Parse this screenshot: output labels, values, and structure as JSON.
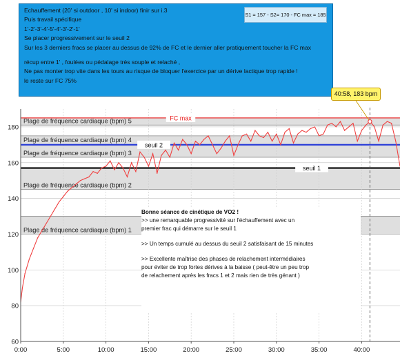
{
  "notes": {
    "lines": [
      "Echauffement (20' si outdoor , 10' si indoor)   finir sur i.3",
      "Puis travail spécifique",
      "1'-2'-3'-4'-5'-4'-3'-2'-1'",
      "Se placer progressivement sur le seuil 2",
      "Sur les 3 derniers fracs se  placer  au dessus de 92% de FC  et le dernier aller pratiquement toucher  la FC max",
      "",
      "récup entre 1' , foulées ou pédalage très souple et relaché ,",
      "Ne pas monter trop vite dans les tours au risque de bloquer  l'exercice par un  dérive lactique trop rapide !",
      "le reste sur FC 75%"
    ],
    "stats": "S1 = 157  -  S2= 170  -  FC max = 185"
  },
  "tooltip": "40:58, 183 bpm",
  "analysis": {
    "title": "Bonne séance de cinétique de VO2 !",
    "lines": [
      "  >>  une remarquable progressivité sur l'échauffement  avec un",
      "premier frac qui démarre sur le seuil 1",
      "",
      "  >> Un temps cumulé au dessus du seuil 2 satisfaisant de 15 minutes",
      "",
      "  >> Excellente maîtrise des phases de relachement intermédiaires",
      "  pour éviter de trop fortes dérives à la baisse ( peut-être un peu trop",
      "de relachement après les fracs 1 et 2 mais rien de très génant )"
    ]
  },
  "colors": {
    "line": "#f04040",
    "fcmax": "#e81818",
    "seuil2": "#2c3fd8",
    "seuil1": "#000000",
    "zone_fill": "#dcdcdc",
    "note_bg": "#1597e0"
  },
  "chart_data": {
    "type": "line",
    "xlabel": "",
    "ylabel": "",
    "x_ticks": [
      "0:00",
      "5:00",
      "10:00",
      "15:00",
      "20:00",
      "25:00",
      "30:00",
      "35:00",
      "40:00"
    ],
    "y_ticks": [
      60,
      80,
      100,
      120,
      140,
      160,
      180
    ],
    "xlim_min": [
      0,
      44.5
    ],
    "ylim": [
      60,
      190
    ],
    "grid": true,
    "zones": [
      {
        "label": "Plage de fréquence cardiaque (bpm) 5",
        "from": 181,
        "to": 185
      },
      {
        "label": "Plage de fréquence cardiaque (bpm) 4",
        "from": 170,
        "to": 175
      },
      {
        "label": "Plage de fréquence cardiaque (bpm) 3",
        "from": 163,
        "to": 170
      },
      {
        "label": "Plage de fréquence cardiaque (bpm) 2",
        "from": 145,
        "to": 157
      },
      {
        "label": "Plage de fréquence cardiaque (bpm) 1",
        "from": 120,
        "to": 130
      }
    ],
    "thresholds": [
      {
        "name": "FC max",
        "value": 185
      },
      {
        "name": "seuil 2",
        "value": 170
      },
      {
        "name": "seuil 1",
        "value": 157
      }
    ],
    "marker": {
      "x_min": 40.97,
      "y": 183
    },
    "series": [
      {
        "x_min": [
          0,
          0.2,
          0.5,
          1,
          1.5,
          2,
          2.5,
          3,
          3.5,
          4,
          4.5,
          5,
          5.5,
          6,
          6.5,
          7,
          7.5,
          8,
          8.5,
          9,
          9.5,
          10,
          10.5,
          11,
          11.5,
          12,
          12.5,
          13,
          13.5,
          14,
          14.5,
          15,
          15.5,
          16,
          16.5,
          17,
          17.5,
          18,
          18.5,
          19,
          19.5,
          20,
          20.5,
          21,
          21.5,
          22,
          22.5,
          23,
          23.5,
          24,
          24.5,
          25,
          25.5,
          26,
          26.5,
          27,
          27.5,
          28,
          28.5,
          29,
          29.5,
          30,
          30.5,
          31,
          31.5,
          32,
          32.5,
          33,
          33.5,
          34,
          34.5,
          35,
          35.5,
          36,
          36.5,
          37,
          37.5,
          38,
          38.5,
          39,
          39.5,
          40,
          40.5,
          41,
          41.5,
          42,
          42.5,
          43,
          43.5,
          44,
          44.5
        ],
        "values": [
          82,
          90,
          98,
          106,
          112,
          118,
          122,
          126,
          130,
          134,
          138,
          141,
          144,
          146,
          148,
          150,
          151,
          152,
          155,
          154,
          157,
          158,
          161,
          156,
          160,
          157,
          152,
          160,
          155,
          166,
          163,
          158,
          165,
          154,
          164,
          167,
          163,
          171,
          167,
          173,
          170,
          165,
          172,
          170,
          173,
          175,
          170,
          165,
          168,
          172,
          175,
          164,
          170,
          175,
          176,
          172,
          178,
          175,
          174,
          177,
          172,
          176,
          170,
          177,
          179,
          171,
          176,
          178,
          177,
          179,
          180,
          175,
          176,
          181,
          182,
          180,
          183,
          178,
          180,
          182,
          172,
          178,
          181,
          183,
          180,
          172,
          181,
          183,
          182,
          172,
          158
        ]
      }
    ]
  }
}
